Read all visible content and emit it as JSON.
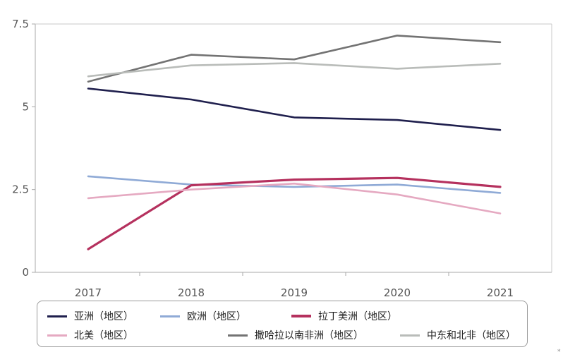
{
  "chart_data": {
    "type": "line",
    "title": "",
    "xlabel": "",
    "ylabel": "",
    "x": [
      "2017",
      "2018",
      "2019",
      "2020",
      "2021"
    ],
    "ylim": [
      0,
      7.5
    ],
    "yticks": [
      {
        "value": 0,
        "label": "0"
      },
      {
        "value": 2.5,
        "label": "2.5"
      },
      {
        "value": 5,
        "label": "5"
      },
      {
        "value": 7.5,
        "label": "7.5"
      }
    ],
    "grid": false,
    "legend_position": "bottom",
    "series": [
      {
        "name": "亚洲（地区）",
        "color": "#1f1f4d",
        "values": [
          5.55,
          5.22,
          4.68,
          4.6,
          4.3
        ]
      },
      {
        "name": "欧洲（地区）",
        "color": "#8faad6",
        "values": [
          2.9,
          2.65,
          2.58,
          2.65,
          2.4
        ]
      },
      {
        "name": "拉丁美洲（地区）",
        "color": "#b5315e",
        "values": [
          0.7,
          2.63,
          2.8,
          2.85,
          2.58
        ]
      },
      {
        "name": "北美（地区）",
        "color": "#e5a9c1",
        "values": [
          2.24,
          2.5,
          2.68,
          2.35,
          1.78
        ]
      },
      {
        "name": "撒哈拉以南非洲（地区）",
        "color": "#737373",
        "values": [
          5.76,
          6.57,
          6.43,
          7.15,
          6.95
        ]
      },
      {
        "name": "中东和北非（地区）",
        "color": "#b9bcb9",
        "values": [
          5.92,
          6.25,
          6.32,
          6.15,
          6.3
        ]
      }
    ]
  },
  "corner_mark": "*"
}
